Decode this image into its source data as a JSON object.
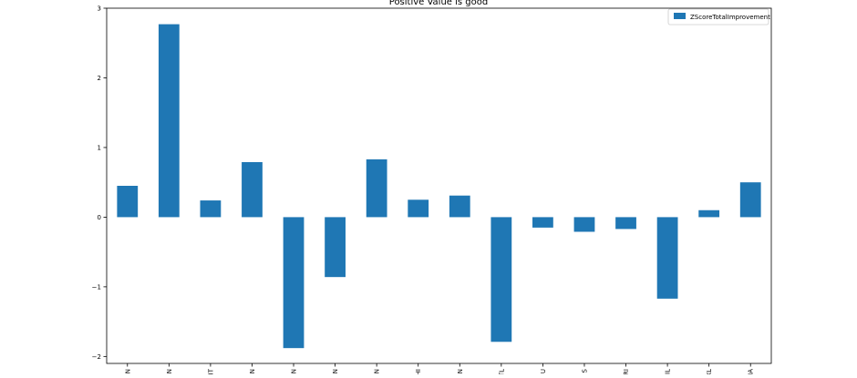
{
  "chart_data": {
    "type": "bar",
    "title": "Positive Value is good",
    "xlabel": "",
    "ylabel": "",
    "categories": [
      "IN",
      "JN",
      "IT",
      "N",
      "N",
      "N",
      "JN",
      "HI",
      "N",
      "TL",
      "U",
      "S",
      "RI",
      "IL",
      "XL",
      "IA"
    ],
    "series": [
      {
        "name": "ZScoreTotalImprovement",
        "color": "#1f77b4",
        "values": [
          0.45,
          2.77,
          0.24,
          0.79,
          -1.88,
          -0.86,
          0.83,
          0.25,
          0.31,
          -1.79,
          -0.15,
          -0.21,
          -0.17,
          -1.17,
          0.1,
          0.5
        ]
      }
    ],
    "ylim": [
      -2.1,
      3.0
    ],
    "yticks": [
      -2,
      -1,
      0,
      1,
      2,
      3
    ],
    "ytick_labels": [
      "−2",
      "−1",
      "0",
      "1",
      "2",
      "3"
    ],
    "legend_position": "top-right",
    "grid": false
  }
}
